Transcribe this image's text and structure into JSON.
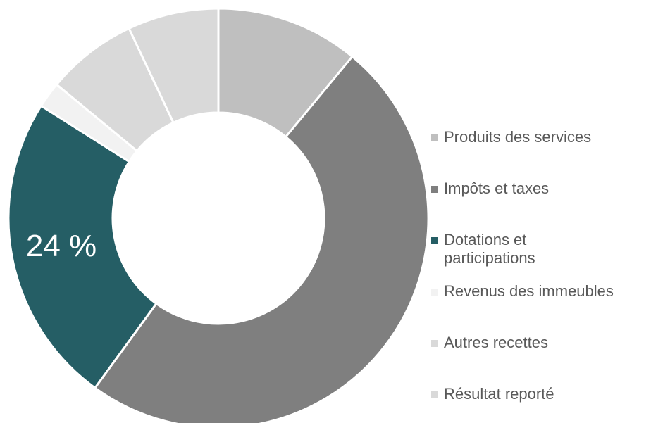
{
  "chart_data": {
    "type": "pie",
    "subtype": "donut",
    "title": "",
    "legend_position": "right",
    "show_percent_label_for": "Dotations et\nparticipations",
    "slices": [
      {
        "label": "Produits des services",
        "value": 11,
        "color": "#bfbfbf"
      },
      {
        "label": "Impôts et taxes",
        "value": 49,
        "color": "#7f7f7f"
      },
      {
        "label": "Dotations et\nparticipations",
        "value": 24,
        "color": "#255e65",
        "data_label": "24 %"
      },
      {
        "label": "Revenus des immeubles",
        "value": 2,
        "color": "#f2f2f2"
      },
      {
        "label": "Autres recettes",
        "value": 7,
        "color": "#d9d9d9"
      },
      {
        "label": "Résultat reporté",
        "value": 7,
        "color": "#d9d9d9"
      }
    ]
  }
}
